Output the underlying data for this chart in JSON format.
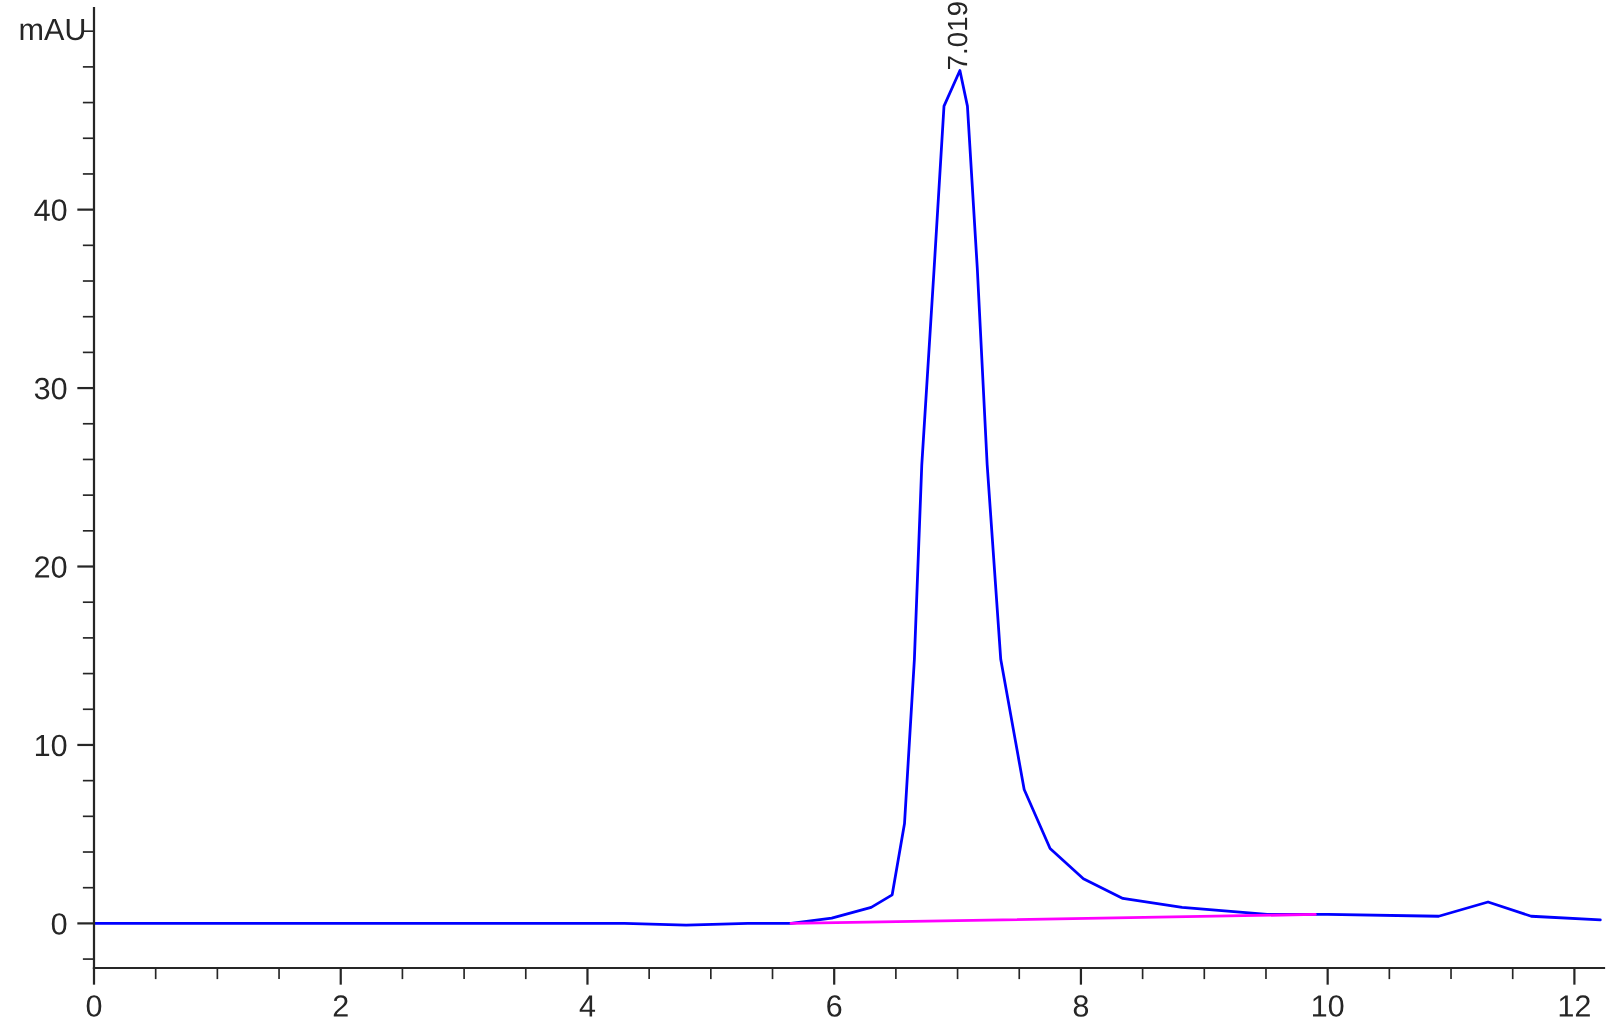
{
  "chart_data": {
    "type": "line",
    "ylabel": "mAU",
    "xlim": [
      0,
      12.24
    ],
    "ylim": [
      -2.5,
      51.3
    ],
    "xticks": [
      0,
      2,
      4,
      6,
      8,
      10,
      12
    ],
    "yticks": [
      0,
      10,
      20,
      30,
      40
    ],
    "grid": false,
    "legend": false,
    "marker": "none",
    "line_style": "solid",
    "annotations": [
      {
        "text": "7.019",
        "x": 7.019,
        "y": 47.8
      }
    ],
    "series": [
      {
        "color": "#0000ff",
        "x": [
          0,
          4.3,
          4.8,
          5.3,
          5.65,
          5.98,
          6.3,
          6.47,
          6.57,
          6.65,
          6.71,
          6.81,
          6.89,
          7.019,
          7.08,
          7.16,
          7.24,
          7.35,
          7.54,
          7.75,
          8.02,
          8.34,
          8.82,
          9.51,
          10.0,
          10.9,
          11.3,
          11.65,
          12.21
        ],
        "values": [
          0,
          0,
          -0.1,
          0,
          0,
          0.3,
          0.9,
          1.6,
          5.6,
          14.8,
          25.7,
          36.7,
          45.8,
          47.8,
          45.8,
          36.7,
          25.7,
          14.8,
          7.5,
          4.2,
          2.5,
          1.4,
          0.9,
          0.5,
          0.5,
          0.4,
          1.2,
          0.4,
          0.2
        ]
      },
      {
        "color": "#ff00ff",
        "x": [
          5.65,
          9.9
        ],
        "values": [
          0,
          0.5
        ]
      }
    ]
  }
}
